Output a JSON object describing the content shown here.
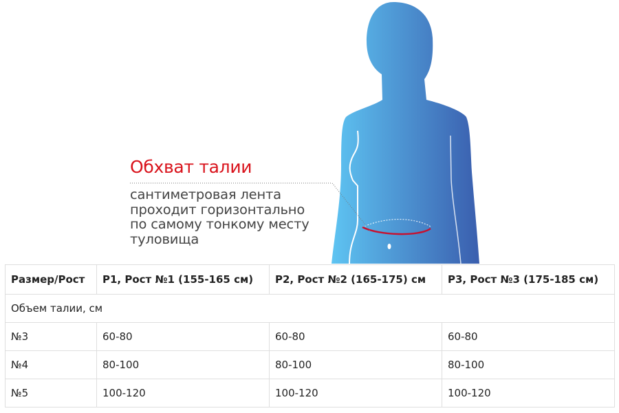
{
  "figure": {
    "title": "Обхват талии",
    "description_lines": [
      "сантиметровая лента",
      "проходит горизонтально",
      "по самому тонкому месту",
      "туловища"
    ],
    "colors": {
      "body_light": "#5ec4f2",
      "body_dark": "#3a5eae",
      "waist_line": "#c8102e",
      "title": "#d9121b"
    }
  },
  "table": {
    "headers": [
      "Размер/Рост",
      "Р1, Рост №1 (155-165 см)",
      "Р2, Рост №2 (165-175) см",
      "Р3, Рост №3 (175-185 см)"
    ],
    "section_label": "Объем талии, см",
    "rows": [
      [
        "№3",
        "60-80",
        "60-80",
        "60-80"
      ],
      [
        "№4",
        "80-100",
        "80-100",
        "80-100"
      ],
      [
        "№5",
        "100-120",
        "100-120",
        "100-120"
      ]
    ]
  }
}
